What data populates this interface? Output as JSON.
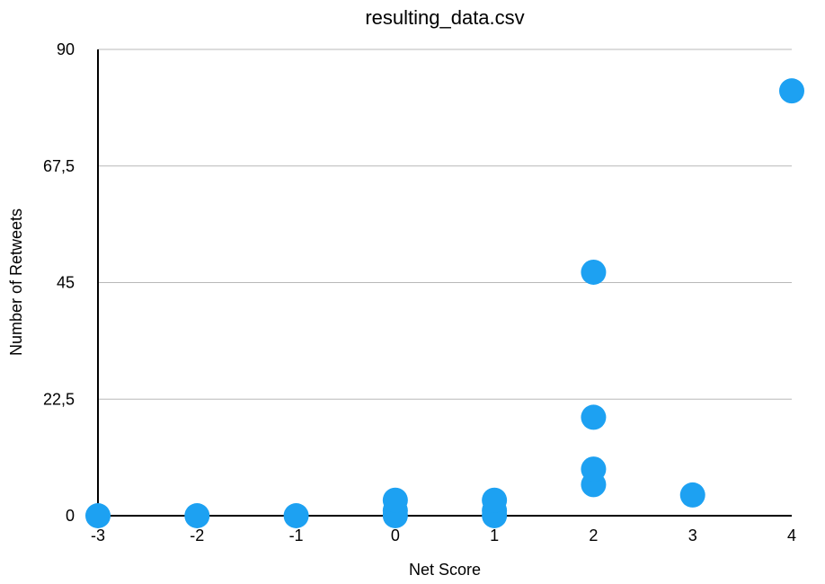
{
  "chart_data": {
    "type": "scatter",
    "title": "resulting_data.csv",
    "xlabel": "Net Score",
    "ylabel": "Number of Retweets",
    "xlim": [
      -3,
      4
    ],
    "ylim": [
      0,
      90
    ],
    "x_ticks": [
      "-3",
      "-2",
      "-1",
      "0",
      "1",
      "2",
      "3",
      "4"
    ],
    "y_ticks": [
      "0",
      "22,5",
      "45",
      "67,5",
      "90"
    ],
    "grid": true,
    "legend": "none",
    "marker_color": "#1da1f2",
    "series": [
      {
        "x": [
          -3,
          -2,
          -1,
          0,
          0,
          0,
          1,
          1,
          1,
          2,
          2,
          2,
          2,
          3,
          4
        ],
        "y": [
          0,
          0,
          0,
          0,
          1,
          3,
          0,
          1,
          3,
          6,
          9,
          19,
          47,
          4,
          82
        ]
      }
    ]
  }
}
